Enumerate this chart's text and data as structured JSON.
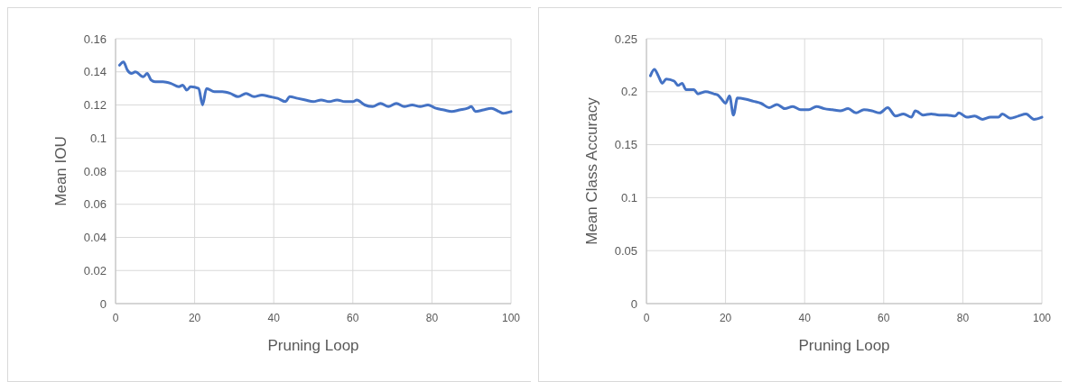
{
  "chart_data": [
    {
      "type": "line",
      "xlabel": "Pruning Loop",
      "ylabel": "Mean IOU",
      "xlim": [
        0,
        100
      ],
      "xticks": [
        0,
        20,
        40,
        60,
        80,
        100
      ],
      "ylim": [
        0,
        0.16
      ],
      "yticks": [
        0,
        0.02,
        0.04,
        0.06,
        0.08,
        0.1,
        0.12,
        0.14,
        0.16
      ],
      "grid": true,
      "marker": "none",
      "line_style": "solid",
      "series": [
        {
          "color": "#4472c4",
          "x": [
            1,
            2,
            3,
            4,
            5,
            7,
            8,
            9,
            10,
            12,
            14,
            16,
            17,
            18,
            19,
            21,
            22,
            23,
            25,
            27,
            29,
            31,
            33,
            35,
            37,
            39,
            41,
            43,
            44,
            46,
            48,
            50,
            52,
            54,
            56,
            58,
            60,
            61,
            63,
            65,
            67,
            69,
            71,
            73,
            75,
            77,
            79,
            81,
            83,
            85,
            87,
            89,
            90,
            91,
            93,
            95,
            97,
            98,
            100
          ],
          "values": [
            0.144,
            0.146,
            0.141,
            0.139,
            0.14,
            0.137,
            0.139,
            0.135,
            0.134,
            0.134,
            0.133,
            0.131,
            0.132,
            0.129,
            0.131,
            0.13,
            0.12,
            0.13,
            0.128,
            0.128,
            0.127,
            0.125,
            0.127,
            0.125,
            0.126,
            0.125,
            0.124,
            0.122,
            0.125,
            0.124,
            0.123,
            0.122,
            0.123,
            0.122,
            0.123,
            0.122,
            0.122,
            0.123,
            0.12,
            0.119,
            0.121,
            0.119,
            0.121,
            0.119,
            0.12,
            0.119,
            0.12,
            0.118,
            0.117,
            0.116,
            0.117,
            0.118,
            0.119,
            0.116,
            0.117,
            0.118,
            0.116,
            0.115,
            0.116
          ]
        }
      ]
    },
    {
      "type": "line",
      "xlabel": "Pruning Loop",
      "ylabel": "Mean Class Accuracy",
      "xlim": [
        0,
        100
      ],
      "xticks": [
        0,
        20,
        40,
        60,
        80,
        100
      ],
      "ylim": [
        0,
        0.25
      ],
      "yticks": [
        0,
        0.05,
        0.1,
        0.15,
        0.2,
        0.25
      ],
      "grid": true,
      "marker": "none",
      "line_style": "solid",
      "series": [
        {
          "color": "#4472c4",
          "x": [
            1,
            2,
            3,
            4,
            5,
            7,
            8,
            9,
            10,
            12,
            13,
            15,
            17,
            18,
            19,
            20,
            21,
            22,
            23,
            25,
            27,
            29,
            31,
            33,
            35,
            37,
            39,
            41,
            43,
            45,
            47,
            49,
            51,
            53,
            55,
            57,
            59,
            61,
            63,
            65,
            67,
            68,
            70,
            72,
            74,
            76,
            78,
            79,
            81,
            83,
            85,
            87,
            89,
            90,
            92,
            94,
            96,
            98,
            100
          ],
          "values": [
            0.215,
            0.221,
            0.215,
            0.208,
            0.212,
            0.21,
            0.206,
            0.208,
            0.202,
            0.202,
            0.198,
            0.2,
            0.198,
            0.197,
            0.193,
            0.189,
            0.196,
            0.178,
            0.194,
            0.193,
            0.191,
            0.189,
            0.185,
            0.188,
            0.184,
            0.186,
            0.183,
            0.183,
            0.186,
            0.184,
            0.183,
            0.182,
            0.184,
            0.18,
            0.183,
            0.182,
            0.18,
            0.185,
            0.177,
            0.179,
            0.176,
            0.182,
            0.178,
            0.179,
            0.178,
            0.178,
            0.177,
            0.18,
            0.176,
            0.177,
            0.174,
            0.176,
            0.176,
            0.179,
            0.175,
            0.177,
            0.179,
            0.174,
            0.176
          ]
        }
      ]
    }
  ]
}
